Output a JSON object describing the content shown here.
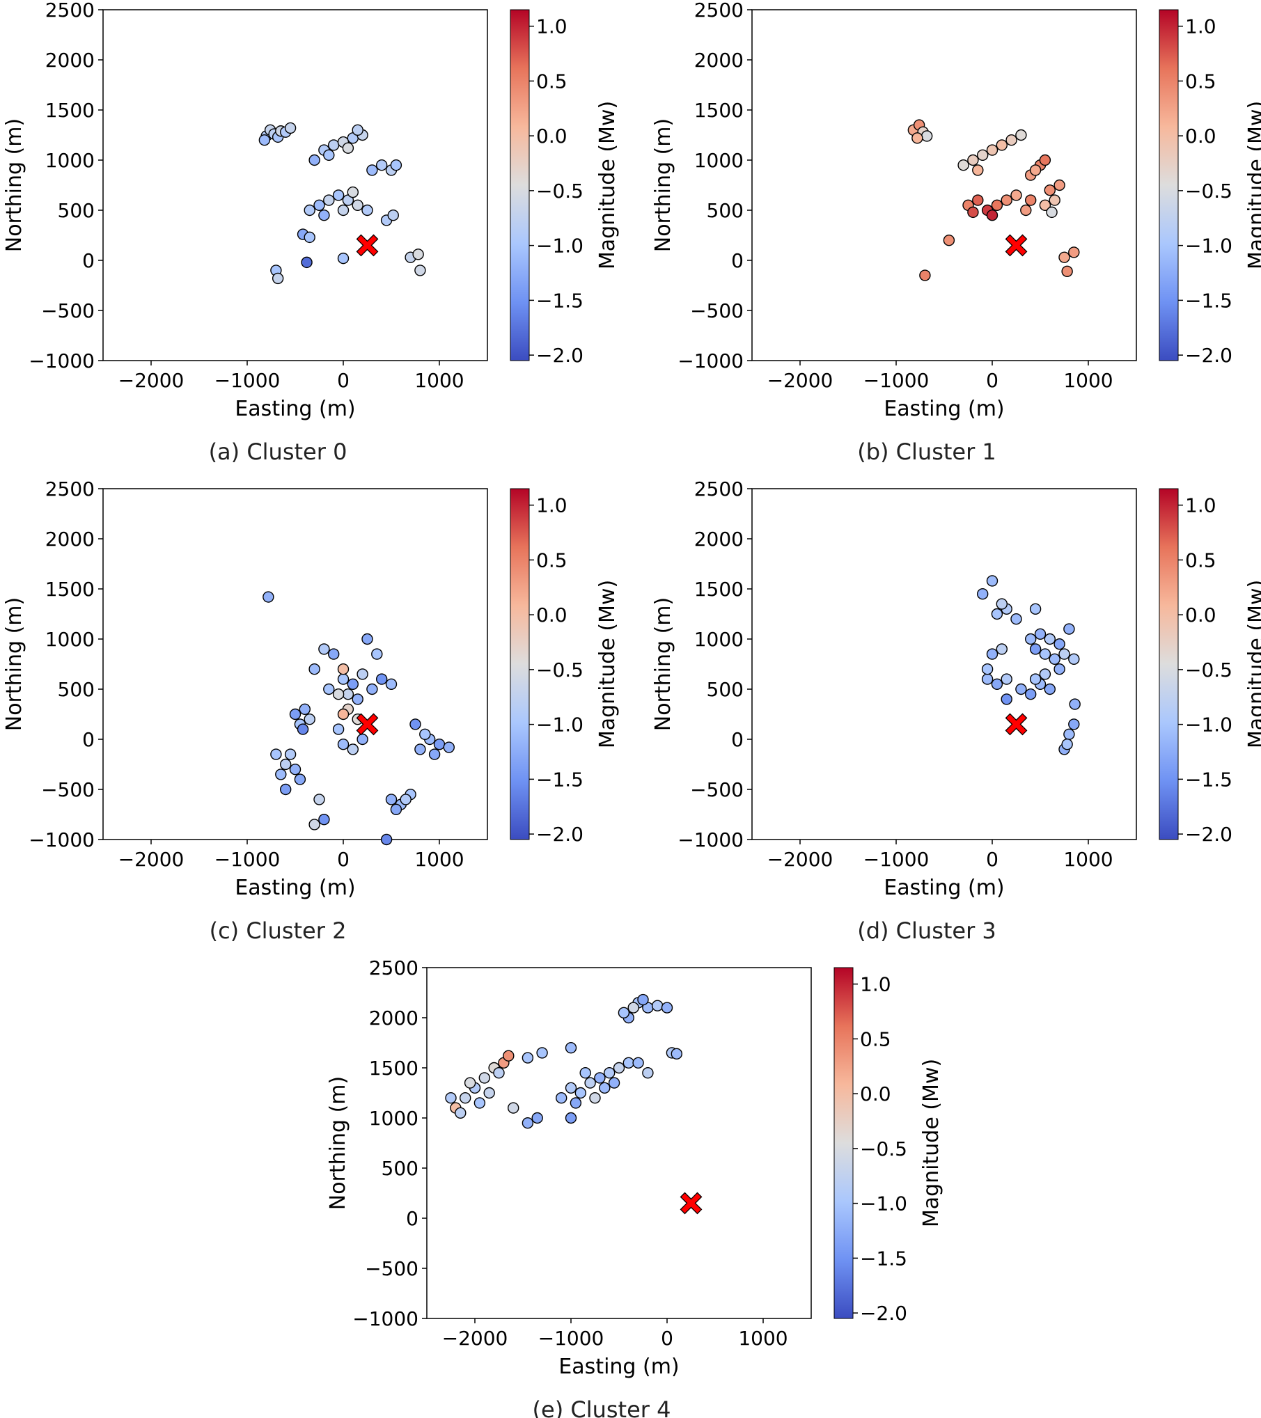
{
  "figure": {
    "colorbar": {
      "label": "Magnitude (Mw)",
      "ticks": [
        "1.0",
        "0.5",
        "0.0",
        "−0.5",
        "−1.0",
        "−1.5",
        "−2.0"
      ],
      "tick_values": [
        1.0,
        0.5,
        0.0,
        -0.5,
        -1.0,
        -1.5,
        -2.0
      ],
      "range": [
        -2.05,
        1.15
      ],
      "colormap": "coolwarm",
      "stops": [
        "#3b4cc0",
        "#6f92f3",
        "#aac7fd",
        "#dddddd",
        "#f7b89c",
        "#e7745b",
        "#b40426"
      ]
    },
    "marker": {
      "label": "red-x-marker",
      "x": 250,
      "y": 150,
      "color": "#ff0000"
    }
  },
  "chart_data": [
    {
      "type": "scatter",
      "caption": "(a) Cluster 0",
      "xlabel": "Easting (m)",
      "ylabel": "Northing (m)",
      "xlim": [
        -2500,
        1500
      ],
      "ylim": [
        -1000,
        2500
      ],
      "xticks": [
        "−2000",
        "−1000",
        "0",
        "1000"
      ],
      "yticks": [
        "2500",
        "2000",
        "1500",
        "1000",
        "500",
        "0",
        "−500",
        "−1000"
      ],
      "points": [
        [
          -800,
          1240,
          -0.9
        ],
        [
          -760,
          1300,
          -0.7
        ],
        [
          -720,
          1260,
          -0.8
        ],
        [
          -680,
          1230,
          -1.0
        ],
        [
          -650,
          1290,
          -0.6
        ],
        [
          -600,
          1280,
          -0.9
        ],
        [
          -550,
          1320,
          -0.7
        ],
        [
          -820,
          1200,
          -1.1
        ],
        [
          -300,
          1000,
          -1.2
        ],
        [
          -200,
          1100,
          -0.9
        ],
        [
          -100,
          1150,
          -0.8
        ],
        [
          0,
          1180,
          -0.6
        ],
        [
          100,
          1220,
          -0.9
        ],
        [
          200,
          1250,
          -0.7
        ],
        [
          -150,
          1050,
          -1.0
        ],
        [
          50,
          1120,
          -0.5
        ],
        [
          150,
          1300,
          -0.8
        ],
        [
          300,
          900,
          -1.1
        ],
        [
          400,
          950,
          -0.9
        ],
        [
          500,
          900,
          -0.8
        ],
        [
          550,
          950,
          -1.0
        ],
        [
          -350,
          500,
          -0.9
        ],
        [
          -250,
          550,
          -1.1
        ],
        [
          -150,
          600,
          -0.7
        ],
        [
          -50,
          650,
          -1.0
        ],
        [
          50,
          600,
          -0.8
        ],
        [
          150,
          550,
          -0.6
        ],
        [
          250,
          500,
          -0.9
        ],
        [
          -200,
          450,
          -1.2
        ],
        [
          0,
          500,
          -0.7
        ],
        [
          100,
          680,
          -0.5
        ],
        [
          450,
          400,
          -0.9
        ],
        [
          520,
          450,
          -0.8
        ],
        [
          -420,
          260,
          -1.3
        ],
        [
          -350,
          230,
          -1.0
        ],
        [
          -700,
          -100,
          -1.0
        ],
        [
          -680,
          -180,
          -0.7
        ],
        [
          -380,
          -20,
          -1.8
        ],
        [
          0,
          20,
          -1.0
        ],
        [
          700,
          30,
          -0.7
        ],
        [
          780,
          60,
          -0.5
        ],
        [
          800,
          -100,
          -0.6
        ]
      ]
    },
    {
      "type": "scatter",
      "caption": "(b) Cluster 1",
      "xlabel": "Easting (m)",
      "ylabel": "Northing (m)",
      "xlim": [
        -2500,
        1500
      ],
      "ylim": [
        -1000,
        2500
      ],
      "xticks": [
        "−2000",
        "−1000",
        "0",
        "1000"
      ],
      "yticks": [
        "2500",
        "2000",
        "1500",
        "1000",
        "500",
        "0",
        "−500",
        "−1000"
      ],
      "points": [
        [
          -820,
          1300,
          0.2
        ],
        [
          -760,
          1350,
          0.4
        ],
        [
          -720,
          1280,
          -0.3
        ],
        [
          -680,
          1240,
          -0.5
        ],
        [
          -780,
          1220,
          0.1
        ],
        [
          -300,
          950,
          -0.4
        ],
        [
          -200,
          1000,
          -0.2
        ],
        [
          -100,
          1050,
          -0.3
        ],
        [
          0,
          1100,
          -0.1
        ],
        [
          100,
          1150,
          0.0
        ],
        [
          200,
          1200,
          -0.2
        ],
        [
          300,
          1250,
          -0.4
        ],
        [
          -150,
          900,
          0.1
        ],
        [
          400,
          850,
          0.3
        ],
        [
          500,
          950,
          0.5
        ],
        [
          550,
          1000,
          0.6
        ],
        [
          450,
          900,
          0.2
        ],
        [
          600,
          700,
          0.4
        ],
        [
          700,
          750,
          0.3
        ],
        [
          650,
          600,
          -0.1
        ],
        [
          550,
          550,
          0.0
        ],
        [
          620,
          480,
          -0.5
        ],
        [
          -250,
          550,
          0.5
        ],
        [
          -150,
          600,
          0.7
        ],
        [
          -50,
          500,
          0.9
        ],
        [
          50,
          550,
          0.6
        ],
        [
          150,
          600,
          0.4
        ],
        [
          250,
          650,
          0.2
        ],
        [
          -200,
          480,
          0.8
        ],
        [
          0,
          450,
          1.0
        ],
        [
          350,
          500,
          0.3
        ],
        [
          400,
          600,
          0.5
        ],
        [
          -450,
          200,
          0.4
        ],
        [
          -700,
          -150,
          0.5
        ],
        [
          750,
          30,
          0.2
        ],
        [
          850,
          80,
          0.3
        ],
        [
          780,
          -110,
          0.4
        ]
      ]
    },
    {
      "type": "scatter",
      "caption": "(c) Cluster 2",
      "xlabel": "Easting (m)",
      "ylabel": "Northing (m)",
      "xlim": [
        -2500,
        1500
      ],
      "ylim": [
        -1000,
        2500
      ],
      "xticks": [
        "−2000",
        "−1000",
        "0",
        "1000"
      ],
      "yticks": [
        "2500",
        "2000",
        "1500",
        "1000",
        "500",
        "0",
        "−500",
        "−1000"
      ],
      "points": [
        [
          -780,
          1420,
          -1.2
        ],
        [
          -300,
          700,
          -1.1
        ],
        [
          -200,
          900,
          -0.9
        ],
        [
          -100,
          850,
          -1.3
        ],
        [
          0,
          600,
          -1.0
        ],
        [
          100,
          550,
          -1.4
        ],
        [
          200,
          650,
          -0.8
        ],
        [
          300,
          500,
          -1.2
        ],
        [
          400,
          600,
          -1.5
        ],
        [
          500,
          550,
          -1.1
        ],
        [
          -150,
          500,
          -1.0
        ],
        [
          50,
          450,
          -0.7
        ],
        [
          250,
          1000,
          -1.3
        ],
        [
          350,
          850,
          -1.0
        ],
        [
          150,
          400,
          -1.2
        ],
        [
          -50,
          450,
          -0.5
        ],
        [
          0,
          700,
          0.0
        ],
        [
          -500,
          250,
          -1.4
        ],
        [
          -400,
          300,
          -1.2
        ],
        [
          -450,
          150,
          -1.0
        ],
        [
          -350,
          200,
          -0.8
        ],
        [
          -420,
          100,
          -1.6
        ],
        [
          -700,
          -150,
          -1.0
        ],
        [
          -600,
          -250,
          -0.8
        ],
        [
          -500,
          -300,
          -1.2
        ],
        [
          -650,
          -350,
          -1.1
        ],
        [
          -550,
          -150,
          -0.9
        ],
        [
          -450,
          -400,
          -1.3
        ],
        [
          -600,
          -500,
          -1.4
        ],
        [
          -250,
          -600,
          -0.7
        ],
        [
          -300,
          -850,
          -0.6
        ],
        [
          -200,
          -800,
          -1.5
        ],
        [
          500,
          -600,
          -1.2
        ],
        [
          600,
          -650,
          -1.1
        ],
        [
          700,
          -550,
          -1.0
        ],
        [
          550,
          -700,
          -1.3
        ],
        [
          650,
          -600,
          -0.9
        ],
        [
          450,
          -1000,
          -1.6
        ],
        [
          800,
          -100,
          -1.2
        ],
        [
          900,
          0,
          -1.1
        ],
        [
          1000,
          -50,
          -1.4
        ],
        [
          850,
          50,
          -1.0
        ],
        [
          950,
          -150,
          -1.3
        ],
        [
          1100,
          -80,
          -1.2
        ],
        [
          750,
          150,
          -1.5
        ],
        [
          0,
          -50,
          -1.1
        ],
        [
          100,
          -100,
          -0.8
        ],
        [
          200,
          0,
          -1.2
        ],
        [
          -50,
          100,
          -1.0
        ],
        [
          150,
          200,
          -0.4
        ],
        [
          50,
          300,
          -0.3
        ],
        [
          0,
          250,
          0.1
        ]
      ]
    },
    {
      "type": "scatter",
      "caption": "(d) Cluster 3",
      "xlabel": "Easting (m)",
      "ylabel": "Northing (m)",
      "xlim": [
        -2500,
        1500
      ],
      "ylim": [
        -1000,
        2500
      ],
      "xticks": [
        "−2000",
        "−1000",
        "0",
        "1000"
      ],
      "yticks": [
        "2500",
        "2000",
        "1500",
        "1000",
        "500",
        "0",
        "−500",
        "−1000"
      ],
      "points": [
        [
          -100,
          1450,
          -1.2
        ],
        [
          0,
          1580,
          -1.1
        ],
        [
          50,
          1250,
          -1.0
        ],
        [
          150,
          1300,
          -0.9
        ],
        [
          250,
          1200,
          -1.1
        ],
        [
          100,
          1350,
          -0.8
        ],
        [
          450,
          1300,
          -1.0
        ],
        [
          400,
          1000,
          -1.1
        ],
        [
          500,
          1050,
          -1.2
        ],
        [
          600,
          1000,
          -0.9
        ],
        [
          700,
          950,
          -1.3
        ],
        [
          550,
          850,
          -1.0
        ],
        [
          650,
          800,
          -1.1
        ],
        [
          750,
          850,
          -0.8
        ],
        [
          800,
          1100,
          -1.2
        ],
        [
          450,
          900,
          -1.4
        ],
        [
          700,
          700,
          -1.2
        ],
        [
          850,
          800,
          -0.9
        ],
        [
          -50,
          600,
          -1.1
        ],
        [
          50,
          550,
          -1.3
        ],
        [
          150,
          600,
          -0.9
        ],
        [
          0,
          850,
          -1.2
        ],
        [
          100,
          900,
          -0.8
        ],
        [
          -50,
          700,
          -1.0
        ],
        [
          150,
          400,
          -1.5
        ],
        [
          300,
          500,
          -1.2
        ],
        [
          400,
          450,
          -1.4
        ],
        [
          500,
          550,
          -1.1
        ],
        [
          600,
          500,
          -1.3
        ],
        [
          450,
          600,
          -1.0
        ],
        [
          550,
          650,
          -0.9
        ],
        [
          750,
          -100,
          -1.2
        ],
        [
          800,
          50,
          -1.1
        ],
        [
          850,
          150,
          -1.3
        ],
        [
          780,
          -50,
          -1.0
        ],
        [
          860,
          350,
          -1.2
        ]
      ]
    },
    {
      "type": "scatter",
      "caption": "(e) Cluster 4",
      "xlabel": "Easting (m)",
      "ylabel": "Northing (m)",
      "xlim": [
        -2500,
        1500
      ],
      "ylim": [
        -1000,
        2500
      ],
      "xticks": [
        "−2000",
        "−1000",
        "0",
        "1000"
      ],
      "yticks": [
        "2500",
        "2000",
        "1500",
        "1000",
        "500",
        "0",
        "−500",
        "−1000"
      ],
      "points": [
        [
          -2200,
          1100,
          0.0
        ],
        [
          -2100,
          1200,
          -0.7
        ],
        [
          -2000,
          1300,
          -0.9
        ],
        [
          -1900,
          1400,
          -0.6
        ],
        [
          -1800,
          1500,
          -0.4
        ],
        [
          -1700,
          1550,
          0.3
        ],
        [
          -2150,
          1050,
          -0.8
        ],
        [
          -1950,
          1150,
          -1.0
        ],
        [
          -1850,
          1250,
          -0.7
        ],
        [
          -2050,
          1350,
          -0.5
        ],
        [
          -1750,
          1450,
          -0.8
        ],
        [
          -1650,
          1620,
          0.4
        ],
        [
          -2250,
          1200,
          -0.9
        ],
        [
          -1600,
          1100,
          -0.6
        ],
        [
          -1450,
          950,
          -1.2
        ],
        [
          -1300,
          1650,
          -1.0
        ],
        [
          -1000,
          1700,
          -1.1
        ],
        [
          -1350,
          1000,
          -1.3
        ],
        [
          -1450,
          1600,
          -1.0
        ],
        [
          -1100,
          1200,
          -1.1
        ],
        [
          -1000,
          1300,
          -0.9
        ],
        [
          -900,
          1250,
          -1.0
        ],
        [
          -800,
          1350,
          -0.8
        ],
        [
          -700,
          1400,
          -1.2
        ],
        [
          -600,
          1450,
          -0.9
        ],
        [
          -950,
          1150,
          -1.3
        ],
        [
          -850,
          1450,
          -1.0
        ],
        [
          -750,
          1200,
          -0.6
        ],
        [
          -650,
          1300,
          -1.1
        ],
        [
          -1000,
          1000,
          -1.4
        ],
        [
          -500,
          1500,
          -0.7
        ],
        [
          -550,
          1350,
          -1.2
        ],
        [
          -400,
          1550,
          -1.0
        ],
        [
          -300,
          1550,
          -1.1
        ],
        [
          -200,
          1450,
          -0.8
        ],
        [
          -300,
          2150,
          -1.0
        ],
        [
          -200,
          2100,
          -1.1
        ],
        [
          -100,
          2120,
          -0.9
        ],
        [
          0,
          2100,
          -1.2
        ],
        [
          -350,
          2100,
          -0.6
        ],
        [
          -250,
          2180,
          -1.3
        ],
        [
          -400,
          2000,
          -1.2
        ],
        [
          -450,
          2050,
          -1.0
        ],
        [
          50,
          1650,
          -0.9
        ],
        [
          100,
          1640,
          -1.1
        ]
      ]
    }
  ]
}
